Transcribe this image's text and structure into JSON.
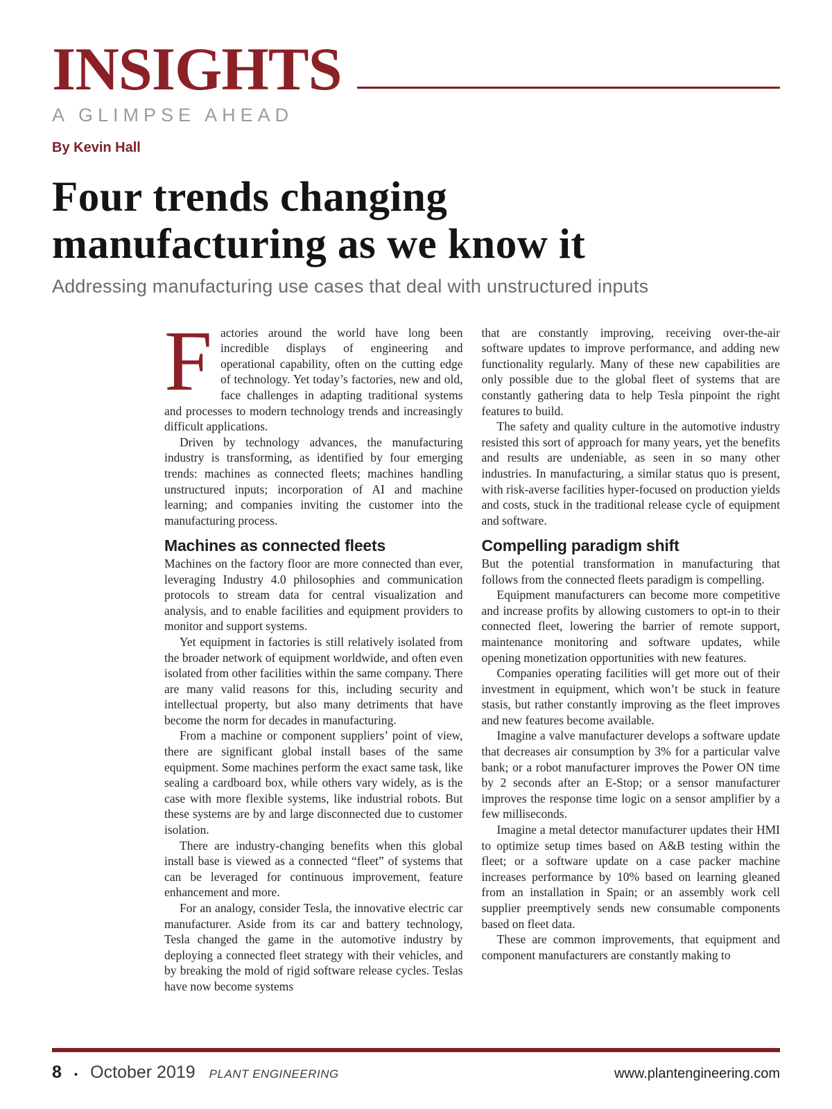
{
  "masthead": {
    "logo": "INSIGHTS",
    "tagline": "A GLIMPSE AHEAD",
    "byline": "By Kevin Hall"
  },
  "article": {
    "title_line1": "Four trends changing",
    "title_line2": "manufacturing as we know it",
    "subtitle": "Addressing manufacturing use cases that deal with unstructured inputs",
    "dropcap": "F",
    "columns": [
      {
        "blocks": [
          {
            "type": "paragraph",
            "indent": false,
            "dropcap": true,
            "text": "actories around the world have long been incredible displays of engineering and operational capability, often on the cutting edge of technology. Yet today’s factories, new and old, face challenges in adapting traditional systems and processes to modern technology trends and increasingly difficult applications."
          },
          {
            "type": "paragraph",
            "indent": true,
            "text": "Driven by technology advances, the manufacturing industry is transforming, as identified by four emerging trends: machines as connected fleets; machines handling unstructured inputs; incorporation of AI and machine learning; and companies inviting the customer into the manufacturing process."
          },
          {
            "type": "heading",
            "text": "Machines as connected fleets"
          },
          {
            "type": "paragraph",
            "indent": false,
            "text": "Machines on the factory floor are more connected than ever, leveraging Industry 4.0 philosophies and communication protocols to stream data for central visualization and analysis, and to enable facilities and equipment providers to monitor and support systems."
          },
          {
            "type": "paragraph",
            "indent": true,
            "text": "Yet equipment in factories is still relatively isolated from the broader network of equipment worldwide, and often even isolated from other facilities within the same company. There are many valid reasons for this, including security and intellectual property, but also many detriments that have become the norm for decades in manufacturing."
          },
          {
            "type": "paragraph",
            "indent": true,
            "text": "From a machine or component suppliers’ point of view, there are significant global install bases of the same equipment. Some machines perform the exact same task, like sealing a cardboard box, while others vary widely, as is the case with more flexible systems, like industrial robots. But these systems are by and large disconnected due to customer isolation."
          },
          {
            "type": "paragraph",
            "indent": true,
            "text": "There are industry-changing benefits when this global install base is viewed as a connected “fleet” of systems that can be leveraged for continuous improvement, feature enhancement and more."
          },
          {
            "type": "paragraph",
            "indent": true,
            "text": "For an analogy, consider Tesla, the innovative electric car manufacturer. Aside from its car and battery technology, Tesla changed the game in the automotive industry by deploying a connected fleet strategy with their vehicles, and by breaking the mold of rigid software release cycles. Teslas have now become systems"
          }
        ]
      },
      {
        "blocks": [
          {
            "type": "paragraph",
            "indent": false,
            "text": "that are constantly improving, receiving over-the-air software updates to improve performance, and adding new functionality regularly. Many of these new capabilities are only possible due to the global fleet of systems that are constantly gathering data to help Tesla pinpoint the right features to build."
          },
          {
            "type": "paragraph",
            "indent": true,
            "text": "The safety and quality culture in the automotive industry resisted this sort of approach for many years, yet the benefits and results are undeniable, as seen in so many other industries. In manufacturing, a similar status quo is present, with risk-averse facilities hyper-focused on production yields and costs, stuck in the traditional release cycle of equipment and software."
          },
          {
            "type": "heading",
            "text": "Compelling paradigm shift"
          },
          {
            "type": "paragraph",
            "indent": false,
            "text": "But the potential transformation in manufacturing that follows from the connected fleets paradigm is compelling."
          },
          {
            "type": "paragraph",
            "indent": true,
            "text": "Equipment manufacturers can become more competitive and increase profits by allowing customers to opt-in to their connected fleet, lowering the barrier of remote support, maintenance monitoring and software updates, while opening monetization opportunities with new features."
          },
          {
            "type": "paragraph",
            "indent": true,
            "text": "Companies operating facilities will get more out of their investment in equipment, which won’t be stuck in feature stasis, but rather constantly improving as the fleet improves and new features become available."
          },
          {
            "type": "paragraph",
            "indent": true,
            "text": "Imagine a valve manufacturer develops a software update that decreases air consumption by 3% for a particular valve bank; or a robot manufacturer improves the Power ON time by 2 seconds after an E-Stop; or a sensor manufacturer improves the response time logic on a sensor amplifier by a few milliseconds."
          },
          {
            "type": "paragraph",
            "indent": true,
            "text": "Imagine a metal detector manufacturer updates their HMI to optimize setup times based on A&B testing within the fleet; or a software update on a case packer machine increases performance by 10% based on learning gleaned from an installation in Spain; or an assembly work cell supplier preemptively sends new consumable components based on fleet data."
          },
          {
            "type": "paragraph",
            "indent": true,
            "text": "These are common improvements, that equipment and component manufacturers are constantly making to"
          }
        ]
      }
    ]
  },
  "footer": {
    "page_number": "8",
    "bullet": "•",
    "issue": "October 2019",
    "publication": "PLANT ENGINEERING",
    "website": "www.plantengineering.com"
  },
  "colors": {
    "brand_maroon": "#8b2026",
    "rule_maroon": "#7d1f24",
    "tagline_gray": "#9b9b9b",
    "subtitle_gray": "#6a6a6a",
    "body_black": "#272223",
    "heading_black": "#221e1f"
  }
}
